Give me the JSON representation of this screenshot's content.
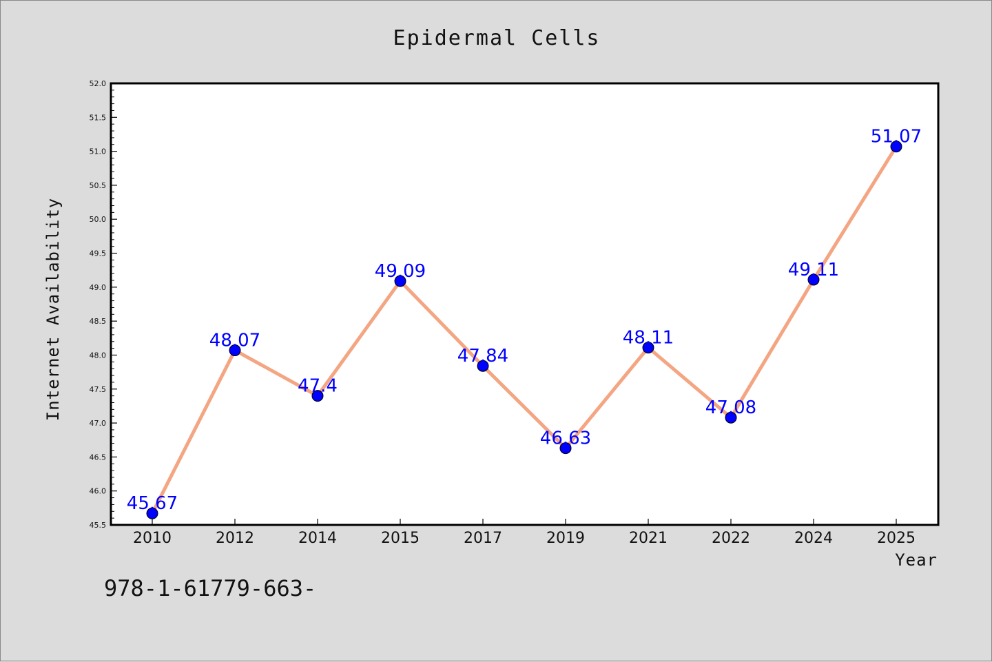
{
  "chart_data": {
    "type": "line",
    "title": "Epidermal Cells",
    "xlabel": "Year",
    "ylabel": "Internet Availability",
    "categories": [
      "2010",
      "2012",
      "2014",
      "2015",
      "2017",
      "2019",
      "2021",
      "2022",
      "2024",
      "2025"
    ],
    "series": [
      {
        "values": [
          45.67,
          48.07,
          47.4,
          49.09,
          47.84,
          46.63,
          48.11,
          47.08,
          49.11,
          51.07
        ],
        "labels": [
          "45.67",
          "48.07",
          "47.4",
          "49.09",
          "47.84",
          "46.63",
          "48.11",
          "47.08",
          "49.11",
          "51.07"
        ],
        "line_color": "#f4a582",
        "marker_color": "#0000ff"
      }
    ],
    "ylim": [
      45.5,
      52.0
    ],
    "yticks": [
      45.5,
      46.0,
      46.5,
      47.0,
      47.5,
      48.0,
      48.5,
      49.0,
      49.5,
      50.0,
      50.5,
      51.0,
      51.5,
      52.0
    ],
    "ytick_labels": [
      "45.5",
      "46.0",
      "46.5",
      "47.0",
      "47.5",
      "48.0",
      "48.5",
      "49.0",
      "49.5",
      "50.0",
      "50.5",
      "51.0",
      "51.5",
      "52.0"
    ],
    "grid": false,
    "legend": "none"
  },
  "footer_text": "978-1-61779-663-"
}
